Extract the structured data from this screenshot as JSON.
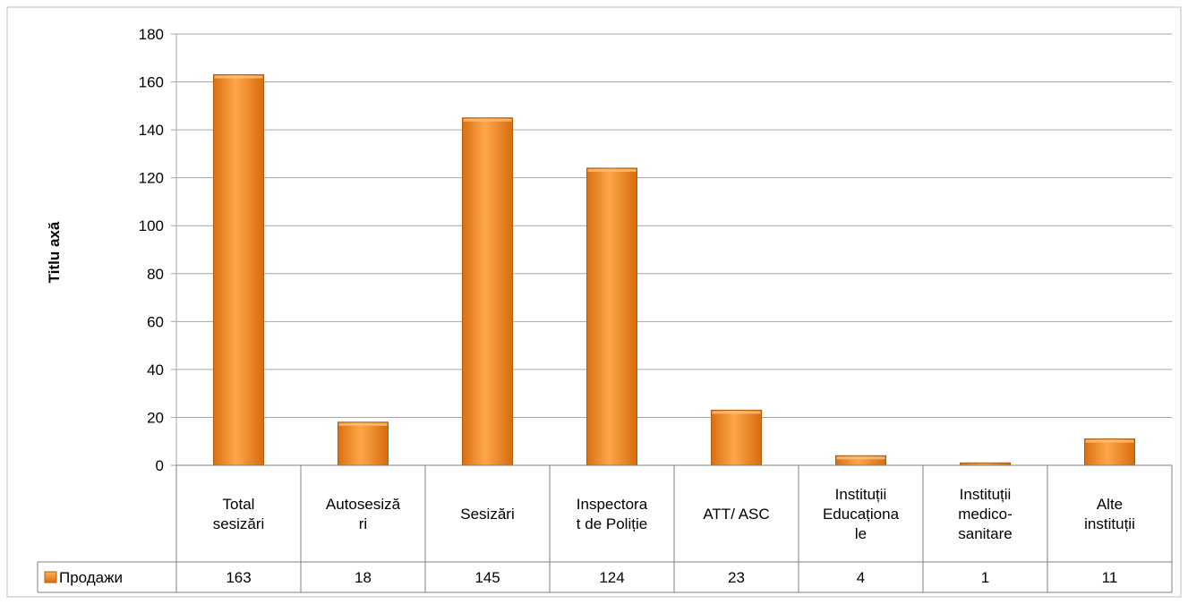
{
  "chart_data": {
    "type": "bar",
    "categories": [
      [
        "Total",
        "sesizări"
      ],
      [
        "Autosesiză",
        "ri"
      ],
      [
        "Sesizări"
      ],
      [
        "Inspectora",
        "t de Poliție"
      ],
      [
        "ATT/ ASC"
      ],
      [
        "Instituții",
        "Educaționa",
        "le"
      ],
      [
        "Instituții",
        "medico-",
        "sanitare"
      ],
      [
        "Alte",
        "instituții"
      ]
    ],
    "series": [
      {
        "name": "Продажи",
        "values": [
          163,
          18,
          145,
          124,
          23,
          4,
          1,
          11
        ]
      }
    ],
    "ylabel": "Titlu axă",
    "ylim": [
      0,
      180
    ],
    "yticks": [
      0,
      20,
      40,
      60,
      80,
      100,
      120,
      140,
      160,
      180
    ],
    "grid": true,
    "legend": "data-table-left",
    "colors": {
      "bar": "#f28a1e",
      "bar_light": "#ffad4f",
      "bar_dark": "#c65f0b",
      "grid": "#a6a6a6",
      "table": "#808080"
    }
  }
}
